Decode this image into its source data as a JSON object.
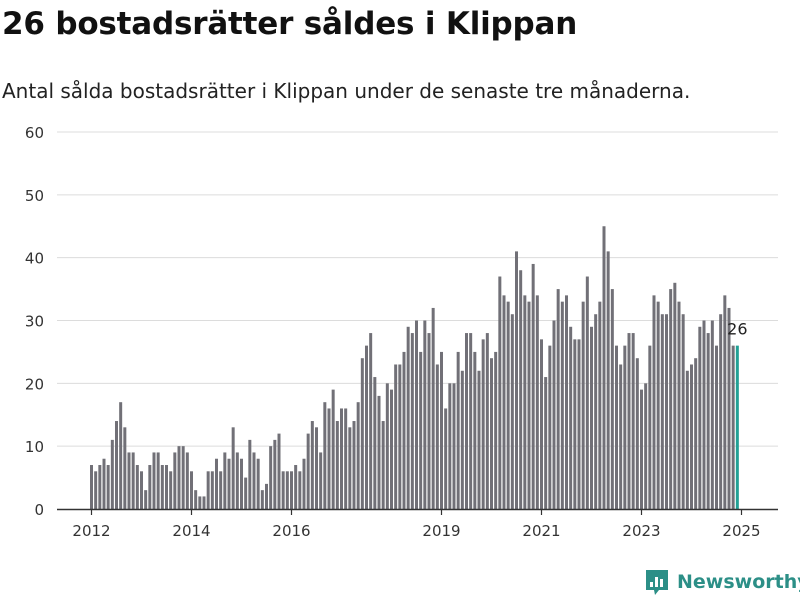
{
  "title": "26 bostadsrätter såldes i Klippan",
  "subtitle": "Antal sålda bostadsrätter i Klippan under de senaste tre månaderna.",
  "brand": {
    "name": "Newsworthy",
    "icon": "newsworthy-chart-icon"
  },
  "colors": {
    "bar": "#717077",
    "highlight": "#22a195",
    "grid": "#dcdcdc",
    "axis": "#333333",
    "brand": "#2c8f87"
  },
  "chart_data": {
    "type": "bar",
    "xlabel": "",
    "ylabel": "",
    "ylim": [
      0,
      60
    ],
    "yticks": [
      0,
      10,
      20,
      30,
      40,
      50,
      60
    ],
    "xticks": [
      2012,
      2014,
      2016,
      2019,
      2021,
      2023,
      2025
    ],
    "grid": true,
    "start": "2012-01",
    "frequency": "monthly",
    "values": [
      7,
      6,
      7,
      8,
      7,
      11,
      14,
      17,
      13,
      9,
      9,
      7,
      6,
      3,
      7,
      9,
      9,
      7,
      7,
      6,
      9,
      10,
      10,
      9,
      6,
      3,
      2,
      2,
      6,
      6,
      8,
      6,
      9,
      8,
      13,
      9,
      8,
      5,
      11,
      9,
      8,
      3,
      4,
      10,
      11,
      12,
      6,
      6,
      6,
      7,
      6,
      8,
      12,
      14,
      13,
      9,
      17,
      16,
      19,
      14,
      16,
      16,
      13,
      14,
      17,
      24,
      26,
      28,
      21,
      18,
      14,
      20,
      19,
      23,
      23,
      25,
      29,
      28,
      30,
      25,
      30,
      28,
      32,
      23,
      25,
      16,
      20,
      20,
      25,
      22,
      28,
      28,
      25,
      22,
      27,
      28,
      24,
      25,
      37,
      34,
      33,
      31,
      41,
      38,
      34,
      33,
      39,
      34,
      27,
      21,
      26,
      30,
      35,
      33,
      34,
      29,
      27,
      27,
      33,
      37,
      29,
      31,
      33,
      45,
      41,
      35,
      26,
      23,
      26,
      28,
      28,
      24,
      19,
      20,
      26,
      34,
      33,
      31,
      31,
      35,
      36,
      33,
      31,
      22,
      23,
      24,
      29,
      30,
      28,
      30,
      26,
      31,
      34,
      32,
      26,
      26
    ],
    "highlight_index": 155,
    "highlight_label": "26"
  }
}
